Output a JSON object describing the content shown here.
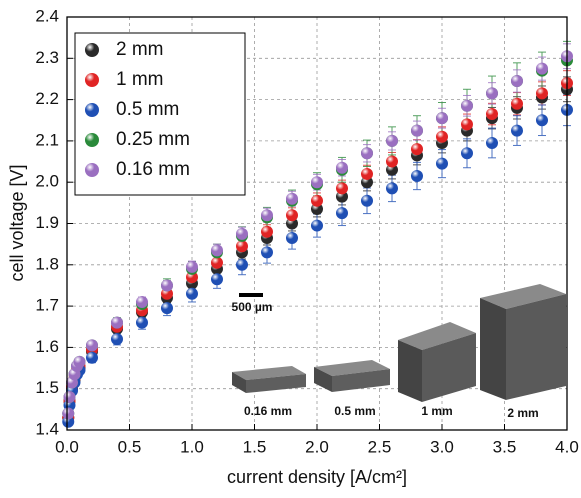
{
  "chart_data": {
    "type": "scatter",
    "x_label": "current density [A/cm²]",
    "y_label": "cell voltage [V]",
    "x": [
      0.01,
      0.02,
      0.04,
      0.06,
      0.08,
      0.1,
      0.2,
      0.4,
      0.6,
      0.8,
      1.0,
      1.2,
      1.4,
      1.6,
      1.8,
      2.0,
      2.2,
      2.4,
      2.6,
      2.8,
      3.0,
      3.2,
      3.4,
      3.6,
      3.8,
      4.0
    ],
    "series": [
      {
        "name": "2 mm",
        "color": "#2a2a2a",
        "values": [
          1.43,
          1.47,
          1.5,
          1.52,
          1.54,
          1.55,
          1.59,
          1.645,
          1.685,
          1.72,
          1.755,
          1.79,
          1.83,
          1.865,
          1.9,
          1.935,
          1.965,
          2.0,
          2.03,
          2.065,
          2.095,
          2.125,
          2.155,
          2.18,
          2.205,
          2.225
        ],
        "errors": [
          0.005,
          0.005,
          0.005,
          0.005,
          0.005,
          0.005,
          0.01,
          0.01,
          0.012,
          0.012,
          0.014,
          0.015,
          0.016,
          0.017,
          0.018,
          0.019,
          0.02,
          0.021,
          0.022,
          0.023,
          0.024,
          0.025,
          0.026,
          0.027,
          0.028,
          0.03
        ]
      },
      {
        "name": "1 mm",
        "color": "#e02424",
        "values": [
          1.43,
          1.47,
          1.505,
          1.525,
          1.545,
          1.555,
          1.595,
          1.65,
          1.69,
          1.73,
          1.77,
          1.805,
          1.845,
          1.88,
          1.92,
          1.955,
          1.985,
          2.02,
          2.05,
          2.08,
          2.11,
          2.14,
          2.165,
          2.19,
          2.215,
          2.24
        ],
        "errors": [
          0.005,
          0.005,
          0.005,
          0.005,
          0.005,
          0.005,
          0.01,
          0.01,
          0.012,
          0.012,
          0.014,
          0.015,
          0.016,
          0.017,
          0.018,
          0.019,
          0.02,
          0.021,
          0.022,
          0.023,
          0.024,
          0.025,
          0.026,
          0.027,
          0.028,
          0.03
        ]
      },
      {
        "name": "0.5 mm",
        "color": "#1f4fb4",
        "values": [
          1.42,
          1.46,
          1.495,
          1.515,
          1.535,
          1.545,
          1.575,
          1.62,
          1.66,
          1.695,
          1.73,
          1.765,
          1.8,
          1.83,
          1.865,
          1.895,
          1.925,
          1.955,
          1.985,
          2.015,
          2.045,
          2.07,
          2.095,
          2.125,
          2.15,
          2.175
        ],
        "errors": [
          0.005,
          0.005,
          0.005,
          0.005,
          0.005,
          0.005,
          0.012,
          0.014,
          0.016,
          0.018,
          0.02,
          0.022,
          0.024,
          0.026,
          0.027,
          0.028,
          0.03,
          0.031,
          0.032,
          0.033,
          0.034,
          0.035,
          0.036,
          0.036,
          0.037,
          0.038
        ]
      },
      {
        "name": "0.25 mm",
        "color": "#2a8a3a",
        "values": [
          1.44,
          1.48,
          1.515,
          1.535,
          1.555,
          1.565,
          1.605,
          1.66,
          1.705,
          1.75,
          1.79,
          1.83,
          1.87,
          1.915,
          1.955,
          1.995,
          2.03,
          2.07,
          2.1,
          2.125,
          2.155,
          2.185,
          2.215,
          2.245,
          2.27,
          2.295
        ],
        "errors": [
          0.005,
          0.005,
          0.005,
          0.005,
          0.005,
          0.005,
          0.01,
          0.012,
          0.014,
          0.016,
          0.018,
          0.02,
          0.022,
          0.024,
          0.026,
          0.028,
          0.03,
          0.032,
          0.034,
          0.036,
          0.038,
          0.04,
          0.042,
          0.044,
          0.045,
          0.046
        ]
      },
      {
        "name": "0.16 mm",
        "color": "#9a6fc0",
        "values": [
          1.44,
          1.48,
          1.515,
          1.535,
          1.555,
          1.565,
          1.605,
          1.66,
          1.71,
          1.75,
          1.795,
          1.835,
          1.875,
          1.92,
          1.96,
          2.0,
          2.035,
          2.07,
          2.1,
          2.125,
          2.155,
          2.185,
          2.215,
          2.245,
          2.275,
          2.305
        ],
        "errors": [
          0.005,
          0.005,
          0.005,
          0.005,
          0.005,
          0.005,
          0.01,
          0.01,
          0.012,
          0.012,
          0.014,
          0.015,
          0.016,
          0.017,
          0.018,
          0.019,
          0.02,
          0.021,
          0.022,
          0.023,
          0.024,
          0.025,
          0.026,
          0.027,
          0.028,
          0.03
        ]
      }
    ],
    "xlim": [
      0,
      4.0
    ],
    "ylim": [
      1.4,
      2.4
    ],
    "xticks": [
      {
        "value": 0,
        "label": "0.0"
      },
      0.5,
      {
        "value": 1,
        "label": "1.0"
      },
      1.5,
      {
        "value": 2,
        "label": "2.0"
      },
      2.5,
      {
        "value": 3,
        "label": "3.0"
      },
      3.5,
      {
        "value": 4,
        "label": "4.0"
      }
    ],
    "yticks": [
      1.4,
      1.5,
      1.6,
      1.7,
      1.8,
      1.9,
      {
        "value": 2,
        "label": "2.0"
      },
      2.1,
      2.2,
      2.3,
      2.4
    ],
    "grid": true,
    "legend": "upper left",
    "annotations": {
      "scale_bar": "500 µm",
      "samples": [
        "0.16 mm",
        "0.5 mm",
        "1 mm",
        "2 mm"
      ]
    }
  }
}
